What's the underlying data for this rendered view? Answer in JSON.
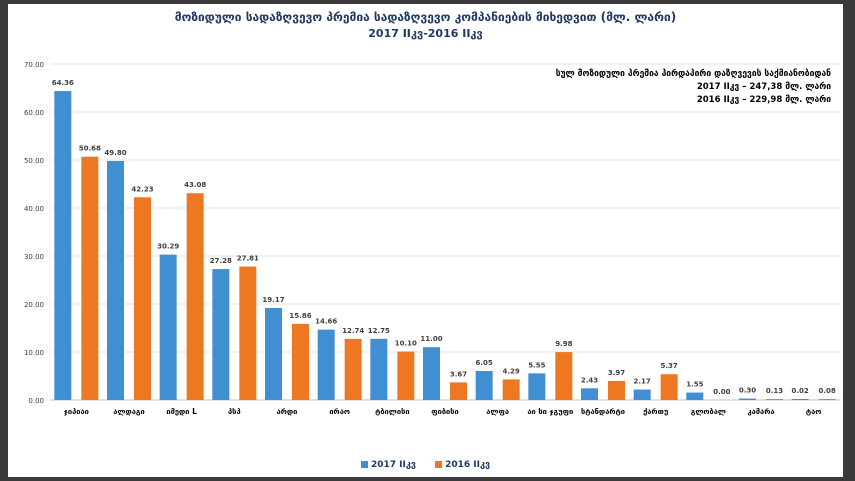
{
  "title_line1": "მოზიდული სადაზღვევო პრემია სადაზღვევო კომპანიების მიხედვით (მლ. ლარი)",
  "title_line2": "2017 IIკვ-2016 IIკვ",
  "note": {
    "line1": "სულ მოზიდული პრემია პირდაპირი დაზღვევის საქმიანობიდან",
    "line2": "2017 IIკვ – 247,38 მლ. ლარი",
    "line3": "2016 IIკვ – 229,98 მლ. ლარი"
  },
  "colors": {
    "s2017": "#3f8fd2",
    "s2016": "#ee7722",
    "frame": "#3b3b3b",
    "title": "#1f3864"
  },
  "chart_data": {
    "type": "bar",
    "ylim": [
      0,
      70
    ],
    "yticks": [
      "0.00",
      "10.00",
      "20.00",
      "30.00",
      "40.00",
      "50.00",
      "60.00",
      "70.00"
    ],
    "grid": true,
    "legend_placement": "bottom",
    "categories": [
      "ჯიპიაი",
      "ალდაგი",
      "იმედი L",
      "პსპ",
      "არდი",
      "ირაო",
      "ტბილისი",
      "ფიბისი",
      "ალფა",
      "აი სი ჯგუფი",
      "სტანდარტი",
      "ქართუ",
      "გლობალ",
      "კამარა",
      "ტაო"
    ],
    "series": [
      {
        "name": "2017 IIკვ",
        "values": [
          64.36,
          49.8,
          30.29,
          27.28,
          19.17,
          14.66,
          12.75,
          11.0,
          6.05,
          5.55,
          2.43,
          2.17,
          1.55,
          0.3,
          0.02
        ],
        "labels": [
          "64.36",
          "49.80",
          "30.29",
          "27.28",
          "19.17",
          "14.66",
          "12.75",
          "11.00",
          "6.05",
          "5.55",
          "2.43",
          "2.17",
          "1.55",
          "0.30",
          "0.02"
        ]
      },
      {
        "name": "2016 IIკვ",
        "values": [
          50.68,
          42.23,
          43.08,
          27.81,
          15.86,
          12.74,
          10.1,
          3.67,
          4.29,
          9.98,
          3.97,
          5.37,
          0.0,
          0.13,
          0.08
        ],
        "labels": [
          "50.68",
          "42.23",
          "43.08",
          "27.81",
          "15.86",
          "12.74",
          "10.10",
          "3.67",
          "4.29",
          "9.98",
          "3.97",
          "5.37",
          "0.00",
          "0.13",
          "0.08"
        ]
      }
    ]
  }
}
